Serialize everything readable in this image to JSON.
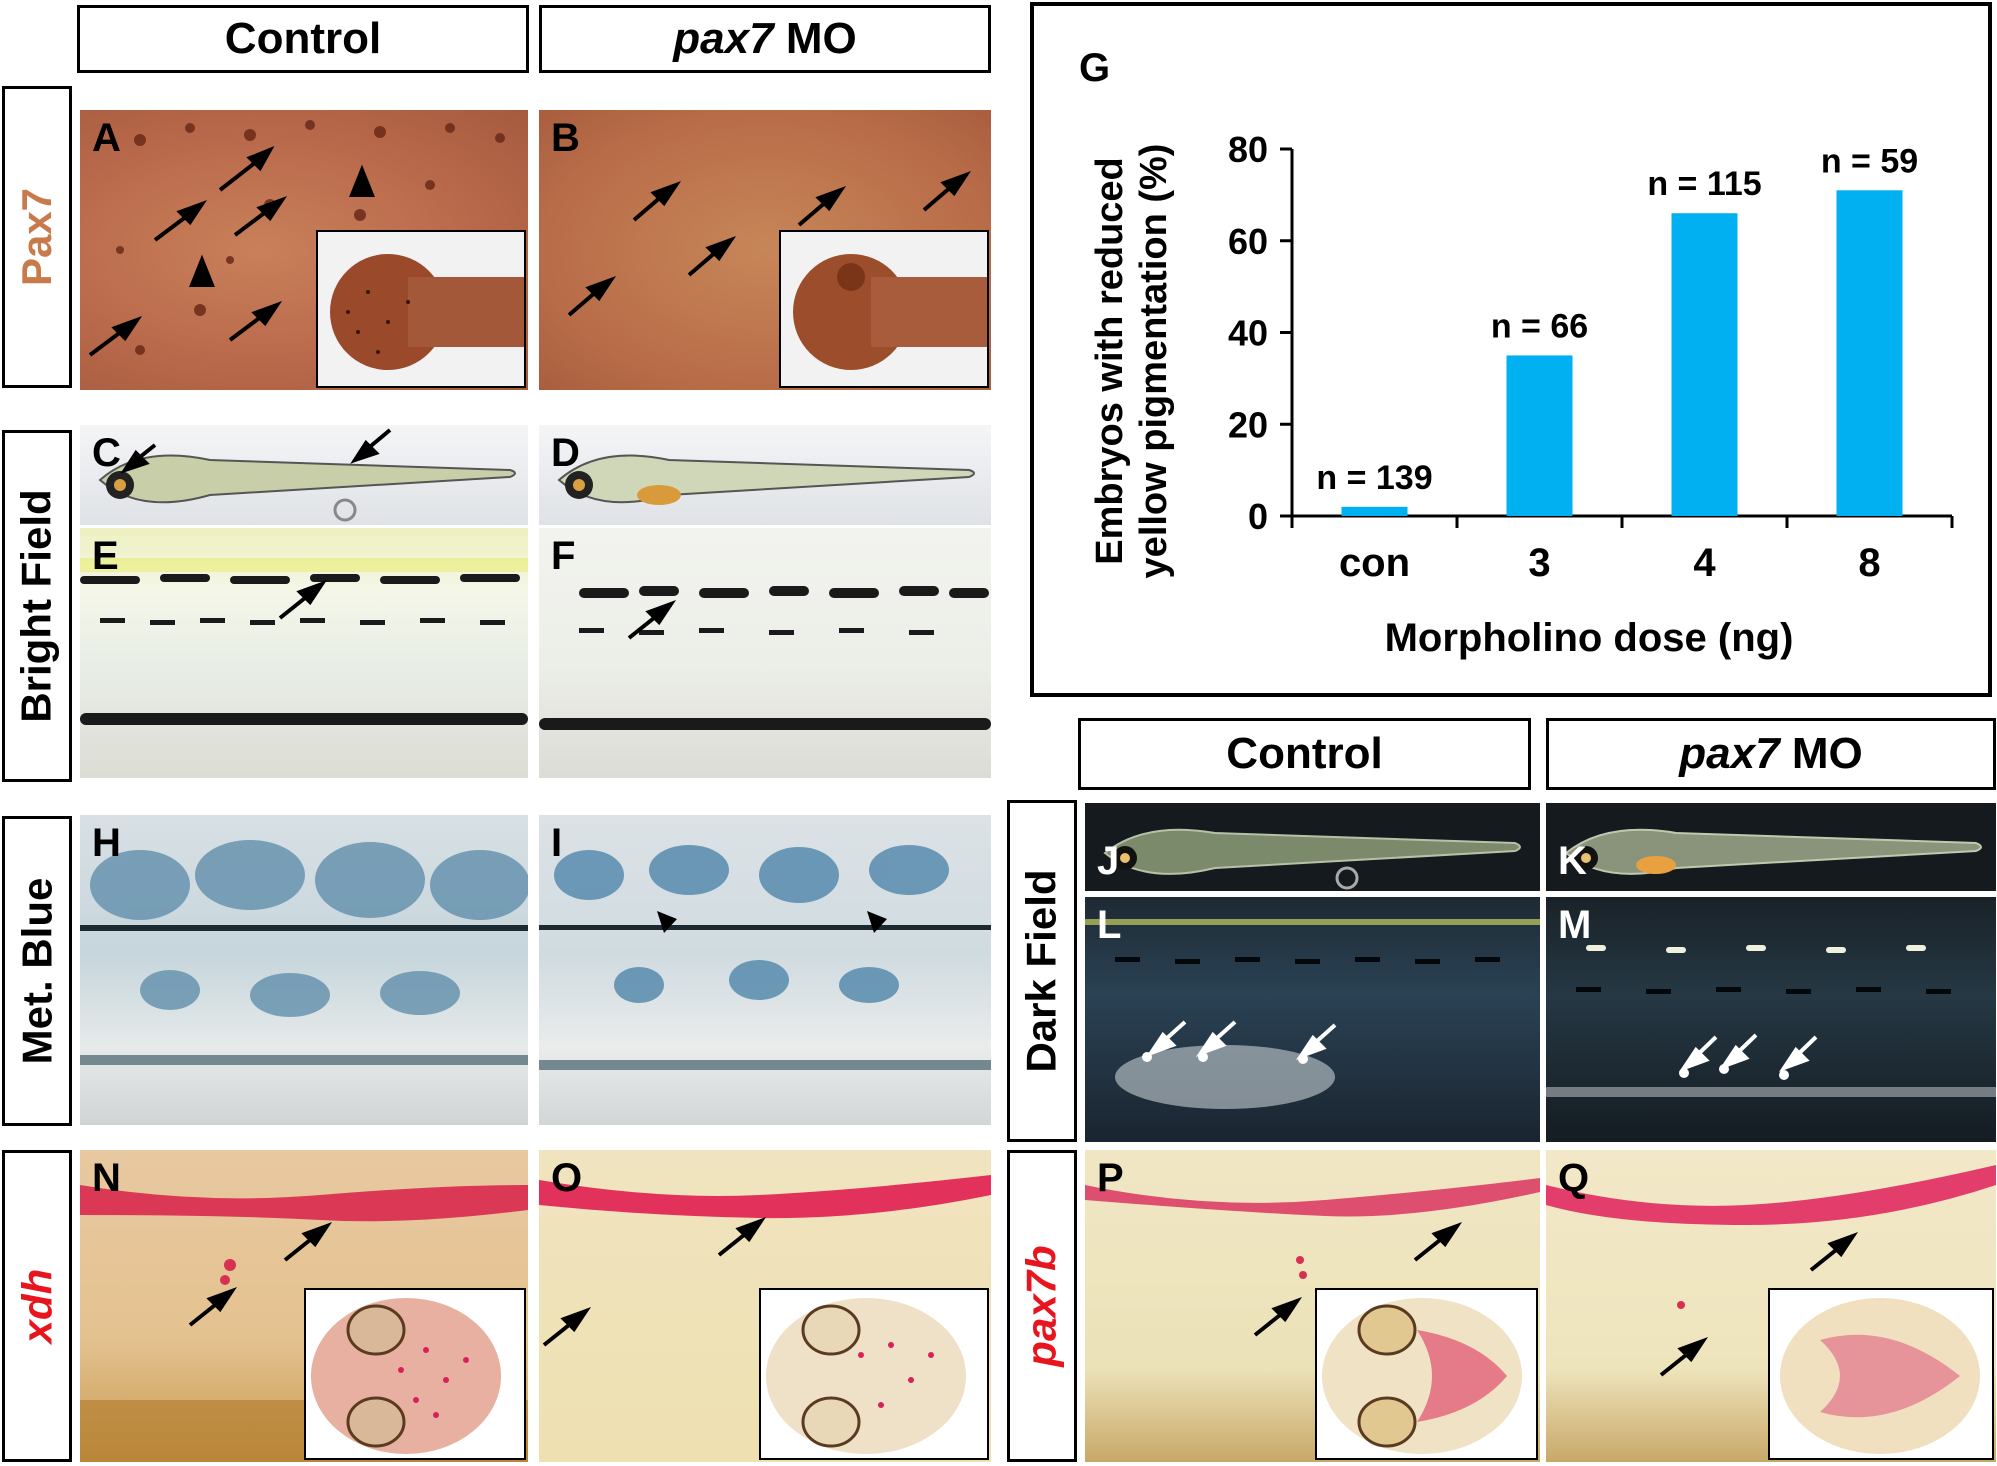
{
  "headers": {
    "control": "Control",
    "mo_gene": "pax7",
    "mo_suffix": " MO"
  },
  "row_labels": {
    "pax7": "Pax7",
    "bright_field": "Bright Field",
    "met_blue": "Met. Blue",
    "dark_field": "Dark Field",
    "xdh": "xdh",
    "pax7b": "pax7b"
  },
  "colors": {
    "pax7_label": "#c87a4a",
    "red_label": "#e8141e",
    "bar": "#00b0f0"
  },
  "panels": {
    "A": "A",
    "B": "B",
    "C": "C",
    "D": "D",
    "E": "E",
    "F": "F",
    "H": "H",
    "I": "I",
    "J": "J",
    "K": "K",
    "L": "L",
    "M": "M",
    "N": "N",
    "O": "O",
    "P": "P",
    "Q": "Q",
    "G": "G"
  },
  "chart_data": {
    "type": "bar",
    "categories": [
      "con",
      "3",
      "4",
      "8"
    ],
    "values": [
      2,
      35,
      66,
      71
    ],
    "annotations": [
      "n = 139",
      "n = 66",
      "n = 115",
      "n = 59"
    ],
    "ylabel": "Embryos with reduced yellow pigmentation (%)",
    "ylabel_line1": "Embryos with reduced",
    "ylabel_line2": "yellow pigmentation (%)",
    "xlabel": "Morpholino dose (ng)",
    "ylim": [
      0,
      80
    ],
    "yticks": [
      "0",
      "20",
      "40",
      "60",
      "80"
    ],
    "grid": false,
    "bar_color": "#00b0f0"
  }
}
